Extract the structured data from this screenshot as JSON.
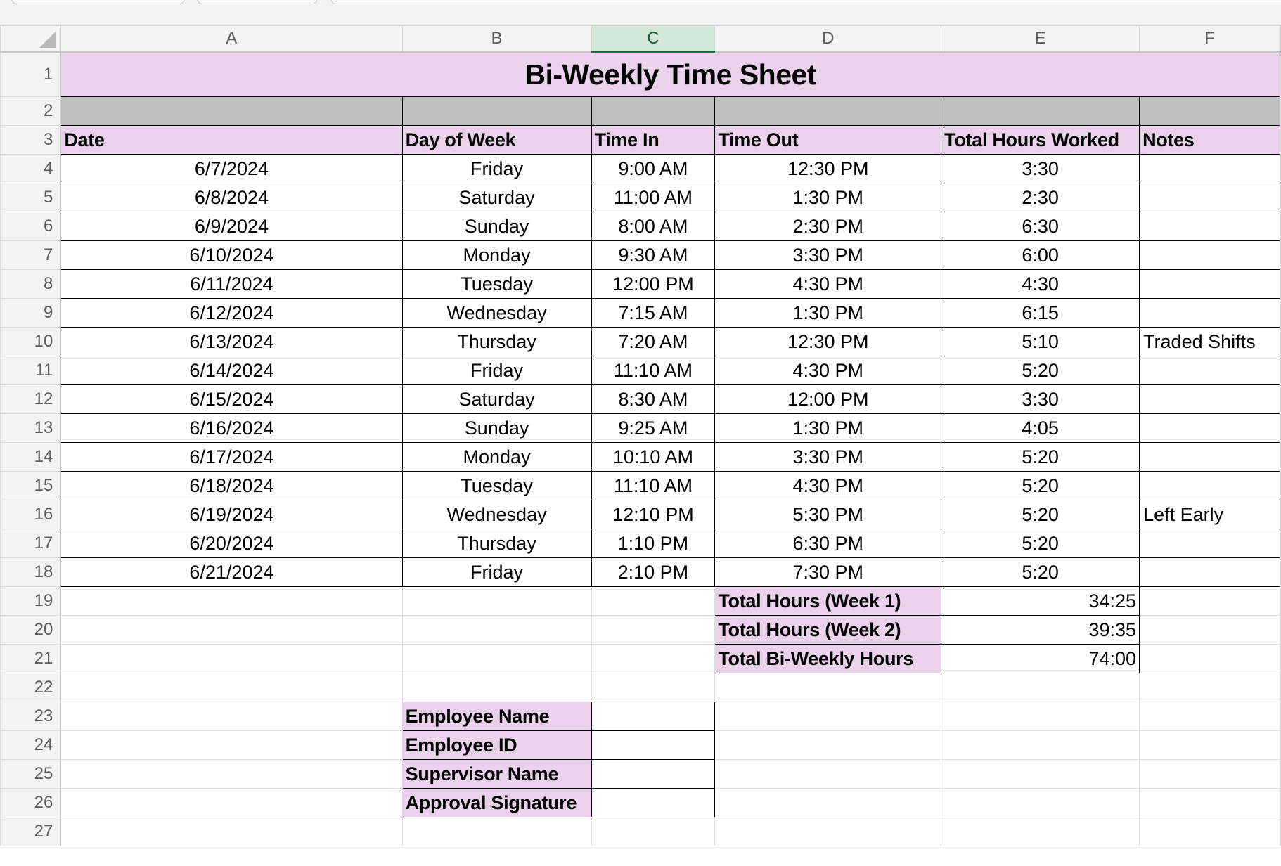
{
  "columns": [
    "A",
    "B",
    "C",
    "D",
    "E",
    "F"
  ],
  "selected_column": "C",
  "row_numbers": [
    "1",
    "2",
    "3",
    "4",
    "5",
    "6",
    "7",
    "8",
    "9",
    "10",
    "11",
    "12",
    "13",
    "14",
    "15",
    "16",
    "17",
    "18",
    "19",
    "20",
    "21",
    "22",
    "23",
    "24",
    "25",
    "26",
    "27"
  ],
  "title": "Bi-Weekly Time Sheet",
  "headers": {
    "date": "Date",
    "day": "Day of Week",
    "time_in": "Time In",
    "time_out": "Time Out",
    "total": "Total Hours Worked",
    "notes": "Notes"
  },
  "entries": [
    {
      "date": "6/7/2024",
      "day": "Friday",
      "time_in": "9:00 AM",
      "time_out": "12:30 PM",
      "hours": "3:30",
      "notes": ""
    },
    {
      "date": "6/8/2024",
      "day": "Saturday",
      "time_in": "11:00 AM",
      "time_out": "1:30 PM",
      "hours": "2:30",
      "notes": ""
    },
    {
      "date": "6/9/2024",
      "day": "Sunday",
      "time_in": "8:00 AM",
      "time_out": "2:30 PM",
      "hours": "6:30",
      "notes": ""
    },
    {
      "date": "6/10/2024",
      "day": "Monday",
      "time_in": "9:30 AM",
      "time_out": "3:30 PM",
      "hours": "6:00",
      "notes": ""
    },
    {
      "date": "6/11/2024",
      "day": "Tuesday",
      "time_in": "12:00 PM",
      "time_out": "4:30 PM",
      "hours": "4:30",
      "notes": ""
    },
    {
      "date": "6/12/2024",
      "day": "Wednesday",
      "time_in": "7:15 AM",
      "time_out": "1:30 PM",
      "hours": "6:15",
      "notes": ""
    },
    {
      "date": "6/13/2024",
      "day": "Thursday",
      "time_in": "7:20 AM",
      "time_out": "12:30 PM",
      "hours": "5:10",
      "notes": "Traded Shifts"
    },
    {
      "date": "6/14/2024",
      "day": "Friday",
      "time_in": "11:10 AM",
      "time_out": "4:30 PM",
      "hours": "5:20",
      "notes": ""
    },
    {
      "date": "6/15/2024",
      "day": "Saturday",
      "time_in": "8:30 AM",
      "time_out": "12:00 PM",
      "hours": "3:30",
      "notes": ""
    },
    {
      "date": "6/16/2024",
      "day": "Sunday",
      "time_in": "9:25 AM",
      "time_out": "1:30 PM",
      "hours": "4:05",
      "notes": ""
    },
    {
      "date": "6/17/2024",
      "day": "Monday",
      "time_in": "10:10 AM",
      "time_out": "3:30 PM",
      "hours": "5:20",
      "notes": ""
    },
    {
      "date": "6/18/2024",
      "day": "Tuesday",
      "time_in": "11:10 AM",
      "time_out": "4:30 PM",
      "hours": "5:20",
      "notes": ""
    },
    {
      "date": "6/19/2024",
      "day": "Wednesday",
      "time_in": "12:10 PM",
      "time_out": "5:30 PM",
      "hours": "5:20",
      "notes": "Left Early"
    },
    {
      "date": "6/20/2024",
      "day": "Thursday",
      "time_in": "1:10 PM",
      "time_out": "6:30 PM",
      "hours": "5:20",
      "notes": ""
    },
    {
      "date": "6/21/2024",
      "day": "Friday",
      "time_in": "2:10 PM",
      "time_out": "7:30 PM",
      "hours": "5:20",
      "notes": ""
    }
  ],
  "summary": [
    {
      "label": "Total Hours (Week 1)",
      "value": "34:25"
    },
    {
      "label": "Total Hours (Week 2)",
      "value": "39:35"
    },
    {
      "label": "Total Bi-Weekly Hours",
      "value": "74:00"
    }
  ],
  "signoff": [
    {
      "label": "Employee Name",
      "value": ""
    },
    {
      "label": "Employee ID",
      "value": ""
    },
    {
      "label": "Supervisor Name",
      "value": ""
    },
    {
      "label": "Approval Signature",
      "value": ""
    }
  ],
  "colors": {
    "header_fill": "#ead1ec",
    "band_fill": "#c0c0c0",
    "selected_column_fill": "#d2e7d8"
  }
}
